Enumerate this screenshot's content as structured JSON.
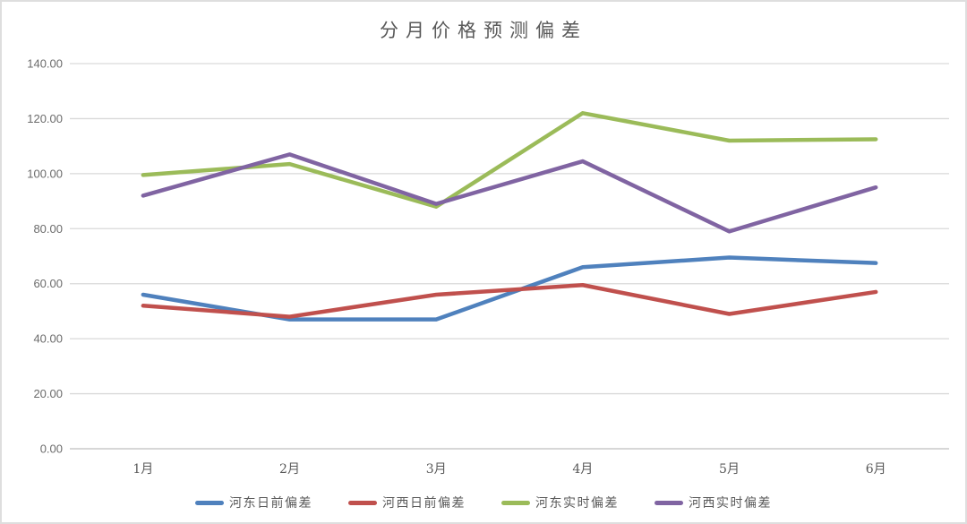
{
  "chart_data": {
    "type": "line",
    "title": "分月价格预测偏差",
    "categories": [
      "1月",
      "2月",
      "3月",
      "4月",
      "5月",
      "6月"
    ],
    "series": [
      {
        "name": "河东日前偏差",
        "color": "#4F81BD",
        "values": [
          56,
          47,
          47,
          66,
          69.5,
          67.5
        ]
      },
      {
        "name": "河西日前偏差",
        "color": "#C0504D",
        "values": [
          52,
          48,
          56,
          59.5,
          49,
          57
        ]
      },
      {
        "name": "河东实时偏差",
        "color": "#9BBB59",
        "values": [
          99.5,
          103.5,
          88,
          122,
          112,
          112.5
        ]
      },
      {
        "name": "河西实时偏差",
        "color": "#8064A2",
        "values": [
          92,
          107,
          89,
          104.5,
          79,
          95
        ]
      }
    ],
    "xlabel": "",
    "ylabel": "",
    "ylim": [
      0,
      140
    ],
    "ytick_step": 20,
    "ytick_labels": [
      "0.00",
      "20.00",
      "40.00",
      "60.00",
      "80.00",
      "100.00",
      "120.00",
      "140.00"
    ],
    "grid": true,
    "legend_position": "bottom",
    "colors": {
      "gridline": "#D9D9D9",
      "axis_line": "#BFBFBF",
      "axis_text": "#595959",
      "title_text": "#595959",
      "background": "#FFFFFF",
      "frame_border": "#DEDEDE"
    }
  }
}
